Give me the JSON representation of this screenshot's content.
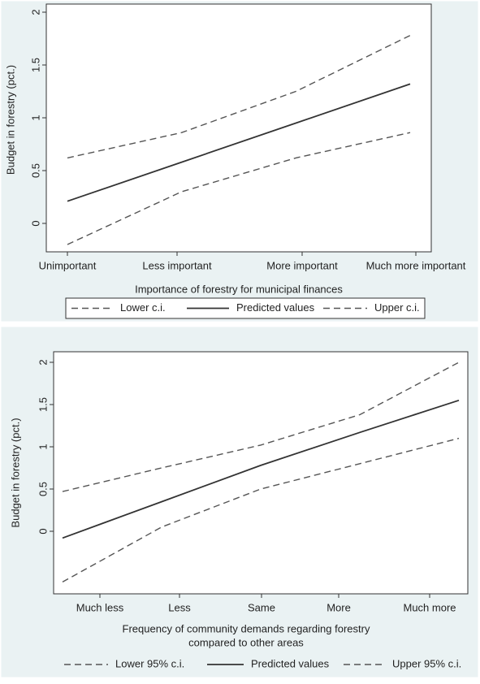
{
  "chart_data": [
    {
      "type": "line",
      "title": "",
      "xlabel": "Importance of forestry for municipal finances",
      "ylabel": "Budget in forestry (pct.)",
      "categories": [
        "Unimportant",
        "Less important",
        "More important",
        "Much more important"
      ],
      "yticks": [
        "0",
        "0.5",
        "1",
        "1.5",
        "2"
      ],
      "ylim": [
        -0.2,
        2
      ],
      "legend_position": "bottom",
      "series": [
        {
          "name": "Lower c.i.",
          "style": "dashed",
          "values": [
            -0.2,
            0.3,
            0.62,
            0.86
          ]
        },
        {
          "name": "Predicted values",
          "style": "solid",
          "values": [
            0.21,
            0.58,
            0.95,
            1.32
          ]
        },
        {
          "name": "Upper c.i.",
          "style": "dashed",
          "values": [
            0.62,
            0.86,
            1.25,
            1.78
          ]
        }
      ]
    },
    {
      "type": "line",
      "title": "",
      "xlabel": "Frequency of community demands regarding forestry compared to other areas",
      "xlabel_lines": [
        "Frequency of community demands regarding forestry",
        "compared to other areas"
      ],
      "ylabel": "Budget in forestry (pct.)",
      "categories": [
        "Much less",
        "Less",
        "Same",
        "More",
        "Much more"
      ],
      "yticks": [
        "0",
        "0.5",
        "1",
        "1.5",
        "2"
      ],
      "ylim": [
        -0.6,
        2
      ],
      "legend_position": "bottom",
      "series": [
        {
          "name": "Lower 95% c.i.",
          "style": "dashed",
          "values": [
            -0.6,
            0.05,
            0.5,
            0.8,
            1.1
          ]
        },
        {
          "name": "Predicted values",
          "style": "solid",
          "values": [
            -0.08,
            0.35,
            0.78,
            1.17,
            1.55
          ]
        },
        {
          "name": "Upper 95% c.i.",
          "style": "dashed",
          "values": [
            0.47,
            0.75,
            1.02,
            1.38,
            2.0
          ]
        }
      ]
    }
  ]
}
